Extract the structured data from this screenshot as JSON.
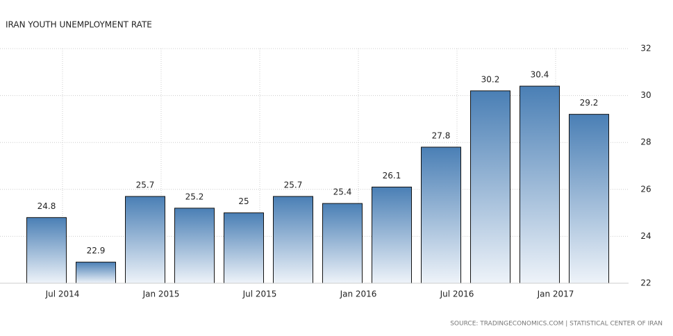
{
  "chart_data": {
    "type": "bar",
    "title": "IRAN YOUTH UNEMPLOYMENT RATE",
    "categories": [
      "Jul 2014",
      null,
      "Jan 2015",
      null,
      "Jul 2015",
      null,
      "Jan 2016",
      null,
      "Jul 2016",
      null,
      "Jan 2017",
      null
    ],
    "values": [
      24.8,
      22.9,
      25.7,
      25.2,
      25,
      25.7,
      25.4,
      26.1,
      27.8,
      30.2,
      30.4,
      29.2
    ],
    "color": "#4a7fb5",
    "ylim": [
      22,
      32
    ],
    "yticks": [
      22,
      24,
      26,
      28,
      30,
      32
    ],
    "grid": true,
    "source": "SOURCE: TRADINGECONOMICS.COM | STATISTICAL CENTER OF IRAN"
  }
}
